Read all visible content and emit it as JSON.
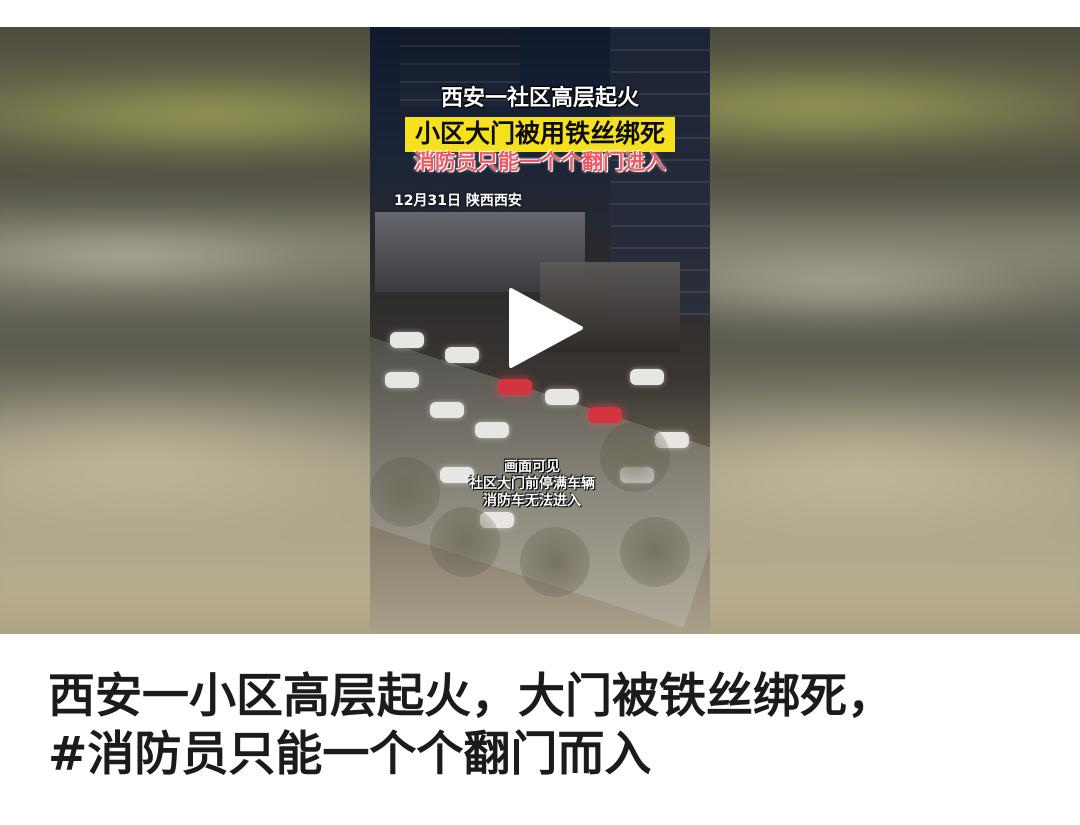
{
  "video": {
    "overlay_title_line1": "西安一社区高层起火",
    "overlay_title_line2": "小区大门被用铁丝绑死",
    "overlay_title_line3": "消防员只能一个个翻门进入",
    "date_location": "12月31日 陕西西安",
    "caption_lines": [
      "画面可见",
      "社区大门前停满车辆",
      "消防车无法进入"
    ],
    "play_icon": "play-icon"
  },
  "headline": {
    "line1": "西安一小区高层起火，大门被铁丝绑死，",
    "line2": "#消防员只能一个个翻门而入"
  },
  "colors": {
    "title_highlight": "#f5e11e",
    "title_accent": "#f05761",
    "headline_text": "#1b1b1b"
  }
}
